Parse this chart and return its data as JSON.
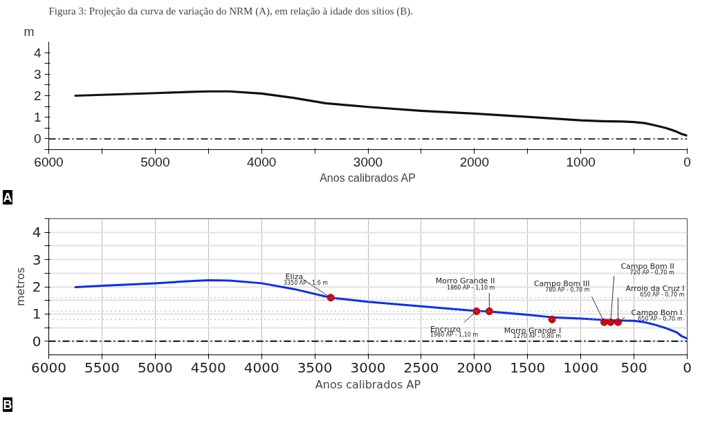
{
  "chart_data": [
    {
      "type": "line",
      "title": "Figura 3: Projeção da curva de variação do NRM (A), em relação à idade dos sítios (B).",
      "xlabel": "Anos calibrados AP",
      "ylabel": "m",
      "xlim": [
        6000,
        0
      ],
      "ylim": [
        -0.5,
        4.5
      ],
      "xticks": [
        6000,
        {
          "value": 5500,
          "label": null
        },
        5000,
        {
          "value": 4500,
          "label": null
        },
        4000,
        {
          "value": 3500,
          "label": null
        },
        3000,
        {
          "value": 2500,
          "label": null
        },
        2000,
        {
          "value": 1500,
          "label": null
        },
        1000,
        {
          "value": 500,
          "label": null
        },
        0
      ],
      "yticks": [
        {
          "value": -0.5,
          "label": null
        },
        0,
        {
          "value": 0.5,
          "label": null
        },
        1,
        {
          "value": 1.5,
          "label": null
        },
        2,
        {
          "value": 2.5,
          "label": null
        },
        3,
        {
          "value": 3.5,
          "label": null
        },
        4
      ],
      "grid": false,
      "marker": "none",
      "line_style": "solid",
      "series": [
        {
          "color": "#111111",
          "x": [
            5750,
            5500,
            5000,
            4700,
            4500,
            4300,
            4000,
            3700,
            3400,
            3000,
            2500,
            2000,
            1500,
            1000,
            800,
            600,
            500,
            400,
            300,
            200,
            150,
            100,
            50,
            0
          ],
          "values": [
            2.0,
            2.04,
            2.12,
            2.17,
            2.2,
            2.2,
            2.1,
            1.9,
            1.65,
            1.48,
            1.3,
            1.17,
            1.02,
            0.86,
            0.82,
            0.8,
            0.78,
            0.73,
            0.62,
            0.5,
            0.42,
            0.33,
            0.22,
            0.15
          ]
        }
      ],
      "ref_lines": [
        {
          "axis": "y",
          "value": 0,
          "line_style": "dashdot",
          "color": "#333333"
        }
      ],
      "annotations": [
        "A"
      ]
    },
    {
      "type": "line",
      "xlabel": "Anos calibrados AP",
      "ylabel": "metros",
      "xlim": [
        6000,
        0
      ],
      "ylim": [
        -0.5,
        4.5
      ],
      "xticks": [
        6000,
        5500,
        5000,
        4500,
        4000,
        3500,
        3000,
        2500,
        2000,
        1500,
        1000,
        500,
        0
      ],
      "yticks": [
        {
          "value": 0.5,
          "label": null
        },
        0,
        1,
        {
          "value": 1.5,
          "label": null
        },
        2,
        {
          "value": 2.5,
          "label": null
        },
        3,
        {
          "value": 3.5,
          "label": null
        },
        4,
        {
          "value": 4.5,
          "label": null
        }
      ],
      "grid": true,
      "marker": "none",
      "line_style": "solid",
      "series": [
        {
          "color": "#0a2cf5",
          "x": [
            5750,
            5500,
            5000,
            4700,
            4500,
            4300,
            4000,
            3700,
            3350,
            3000,
            2500,
            2000,
            1860,
            1500,
            1270,
            1000,
            780,
            650,
            500,
            400,
            300,
            200,
            100,
            50,
            0
          ],
          "values": [
            1.99,
            2.04,
            2.13,
            2.2,
            2.24,
            2.23,
            2.13,
            1.92,
            1.6,
            1.45,
            1.28,
            1.12,
            1.09,
            0.97,
            0.88,
            0.83,
            0.78,
            0.76,
            0.75,
            0.7,
            0.6,
            0.48,
            0.33,
            0.18,
            0.1
          ]
        },
        {
          "type": "scatter",
          "marker": "circle",
          "color": "#e3000f",
          "x": [
            3350,
            1980,
            1860,
            1270,
            780,
            720,
            650
          ],
          "values": [
            1.6,
            1.1,
            1.1,
            0.8,
            0.7,
            0.7,
            0.7
          ]
        }
      ],
      "ref_lines": [
        {
          "axis": "y",
          "value": 0,
          "line_style": "dashdot",
          "color": "#111111"
        },
        {
          "axis": "y",
          "value": 1.6,
          "line_style": "dotted",
          "color": "#999999"
        },
        {
          "axis": "y",
          "value": 1.1,
          "line_style": "dotted",
          "color": "#999999"
        },
        {
          "axis": "y",
          "value": 0.8,
          "line_style": "dotted",
          "color": "#999999"
        }
      ],
      "annotations": [
        "B",
        {
          "text": "Eliza",
          "x": 3350,
          "y": 1.6
        },
        "3350 AP - 1.6 m",
        {
          "text": "Morro Grande II",
          "x": 1860,
          "y": 1.1
        },
        "1860 AP - 1,10 m",
        {
          "text": "Encruzo",
          "x": 1980,
          "y": 1.1
        },
        "1980 AP - 1,10 m",
        {
          "text": "Morro Grande I",
          "x": 1270,
          "y": 0.8
        },
        "1270 AP - 0,80 m",
        {
          "text": "Campo Bom III",
          "x": 780,
          "y": 0.7
        },
        "780 AP - 0,70 m",
        {
          "text": "Campo Bom II",
          "x": 720,
          "y": 0.7
        },
        "720 AP - 0,70 m",
        {
          "text": "Arroio da Cruz I",
          "x": 650,
          "y": 0.7
        },
        "650 AP - 0,70 m",
        {
          "text": "Campo Bom I",
          "x": 650,
          "y": 0.7
        },
        "650 AP - 0,70 m"
      ]
    }
  ]
}
